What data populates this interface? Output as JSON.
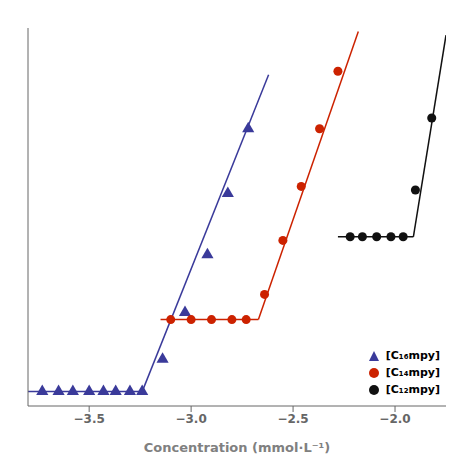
{
  "chart_data": {
    "type": "scatter",
    "xlabel": "Concentration (mmol·L⁻¹)",
    "xlim": [
      -3.8,
      -1.75
    ],
    "xticks": [
      {
        "value": -3.5,
        "label": "−3.5"
      },
      {
        "value": -3.0,
        "label": "−3.0"
      },
      {
        "value": -2.5,
        "label": "−2.5"
      },
      {
        "value": -2.0,
        "label": "−2.0"
      }
    ],
    "ylim": [
      0,
      1.05
    ],
    "yticks": [],
    "tick_labels": "x",
    "legend": "lower right",
    "series": [
      {
        "name": "[C₁₆mpy]",
        "type": "scatter",
        "marker": "triangle",
        "color": "#3a3a9a",
        "x": [
          -3.73,
          -3.65,
          -3.58,
          -3.5,
          -3.43,
          -3.37,
          -3.3,
          -3.24,
          -3.14,
          -3.03,
          -2.92,
          -2.82,
          -2.72
        ],
        "values": [
          0.04,
          0.04,
          0.04,
          0.04,
          0.04,
          0.04,
          0.04,
          0.04,
          0.13,
          0.26,
          0.42,
          0.59,
          0.77
        ]
      },
      {
        "type": "line",
        "color": "#3a3a9a",
        "x": [
          -3.8,
          -3.24
        ],
        "values": [
          0.04,
          0.04
        ]
      },
      {
        "type": "line",
        "color": "#3a3a9a",
        "x": [
          -3.24,
          -2.62
        ],
        "values": [
          0.04,
          0.92
        ]
      },
      {
        "name": "[C₁₄mpy]",
        "type": "scatter",
        "marker": "circle",
        "color": "#cc2200",
        "x": [
          -3.1,
          -3.0,
          -2.9,
          -2.8,
          -2.73,
          -2.64,
          -2.55,
          -2.46,
          -2.37,
          -2.28
        ],
        "values": [
          0.24,
          0.24,
          0.24,
          0.24,
          0.24,
          0.31,
          0.46,
          0.61,
          0.77,
          0.93
        ]
      },
      {
        "type": "line",
        "color": "#cc2200",
        "x": [
          -3.15,
          -2.67
        ],
        "values": [
          0.24,
          0.24
        ]
      },
      {
        "type": "line",
        "color": "#cc2200",
        "x": [
          -2.67,
          -2.18
        ],
        "values": [
          0.24,
          1.04
        ]
      },
      {
        "name": "[C₁₂mpy]",
        "type": "scatter",
        "marker": "circle",
        "color": "#111111",
        "x": [
          -2.22,
          -2.16,
          -2.09,
          -2.02,
          -1.96,
          -1.9,
          -1.82
        ],
        "values": [
          0.47,
          0.47,
          0.47,
          0.47,
          0.47,
          0.6,
          0.8
        ]
      },
      {
        "type": "line",
        "color": "#111111",
        "x": [
          -2.28,
          -1.91
        ],
        "values": [
          0.47,
          0.47
        ]
      },
      {
        "type": "line",
        "color": "#111111",
        "x": [
          -1.91,
          -1.75
        ],
        "values": [
          0.47,
          1.03
        ]
      }
    ]
  }
}
